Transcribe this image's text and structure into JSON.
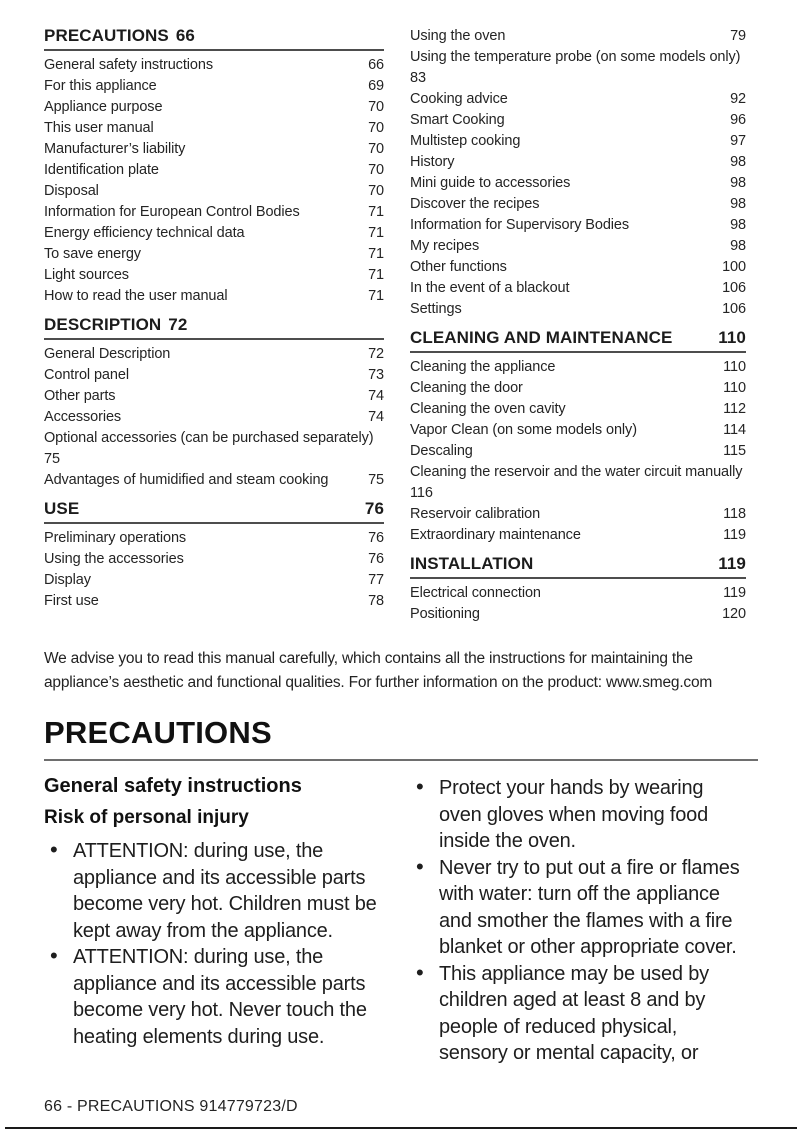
{
  "toc": {
    "left": [
      {
        "heading": {
          "label": "PRECAUTIONS",
          "page": "66"
        },
        "items": [
          {
            "label": "General safety instructions",
            "page": "66"
          },
          {
            "label": "For this appliance",
            "page": "69"
          },
          {
            "label": "Appliance purpose",
            "page": "70"
          },
          {
            "label": "This user manual",
            "page": "70"
          },
          {
            "label": "Manufacturer’s liability",
            "page": "70"
          },
          {
            "label": "Identification plate",
            "page": "70"
          },
          {
            "label": "Disposal",
            "page": "70"
          },
          {
            "label": "Information for European Control Bodies",
            "page": "71"
          },
          {
            "label": "Energy efficiency technical data",
            "page": "71"
          },
          {
            "label": "To save energy",
            "page": "71"
          },
          {
            "label": "Light sources",
            "page": "71"
          },
          {
            "label": "How to read the user manual",
            "page": "71"
          }
        ]
      },
      {
        "heading": {
          "label": "DESCRIPTION",
          "page": "72"
        },
        "items": [
          {
            "label": "General Description",
            "page": "72"
          },
          {
            "label": "Control panel",
            "page": "73"
          },
          {
            "label": "Other parts",
            "page": "74"
          },
          {
            "label": "Accessories",
            "page": "74"
          },
          {
            "label": "Optional accessories (can be purchased separately)",
            "page": "75"
          },
          {
            "label": "Advantages of humidified and steam cooking",
            "page": "75"
          }
        ]
      },
      {
        "heading": {
          "label": "USE",
          "page": "76"
        },
        "items": [
          {
            "label": "Preliminary operations",
            "page": "76"
          },
          {
            "label": "Using the accessories",
            "page": "76"
          },
          {
            "label": "Display",
            "page": "77"
          },
          {
            "label": "First use",
            "page": "78"
          }
        ]
      }
    ],
    "right": [
      {
        "items": [
          {
            "label": "Using the oven",
            "page": "79"
          },
          {
            "label": "Using the temperature probe (on some models only)",
            "page": "83"
          },
          {
            "label": "Cooking advice",
            "page": "92"
          },
          {
            "label": "Smart Cooking",
            "page": "96"
          },
          {
            "label": "Multistep cooking",
            "page": "97"
          },
          {
            "label": "History",
            "page": "98"
          },
          {
            "label": "Mini guide to accessories",
            "page": "98"
          },
          {
            "label": "Discover the recipes",
            "page": "98"
          },
          {
            "label": "Information for Supervisory Bodies",
            "page": "98"
          },
          {
            "label": "My recipes",
            "page": "98"
          },
          {
            "label": "Other functions",
            "page": "100"
          },
          {
            "label": "In the event of a blackout",
            "page": "106"
          },
          {
            "label": "Settings",
            "page": "106"
          }
        ]
      },
      {
        "heading": {
          "label": "CLEANING AND MAINTENANCE",
          "page": "110"
        },
        "items": [
          {
            "label": "Cleaning the appliance",
            "page": "110"
          },
          {
            "label": "Cleaning the door",
            "page": "110"
          },
          {
            "label": "Cleaning the oven cavity",
            "page": "112"
          },
          {
            "label": "Vapor Clean (on some models only)",
            "page": "114"
          },
          {
            "label": "Descaling",
            "page": "115"
          },
          {
            "label": "Cleaning the reservoir and the water circuit manually",
            "page": "116"
          },
          {
            "label": "Reservoir calibration",
            "page": "118"
          },
          {
            "label": "Extraordinary maintenance",
            "page": "119"
          }
        ]
      },
      {
        "heading": {
          "label": "INSTALLATION",
          "page": "119"
        },
        "items": [
          {
            "label": "Electrical connection",
            "page": "119"
          },
          {
            "label": "Positioning",
            "page": "120"
          }
        ]
      }
    ]
  },
  "intro": "We advise you to read this manual carefully, which contains all the instructions for maintaining the appliance’s aesthetic and functional qualities. For further information on the product: www.smeg.com",
  "section": {
    "title": "PRECAUTIONS",
    "subheading": "General safety instructions",
    "risk_heading": "Risk of personal injury",
    "bullets_left": [
      {
        "text": "ATTENTION: during use, the appliance and its accessible parts become very hot. Children must be kept away from the appliance."
      },
      {
        "text": "ATTENTION: during use, the appliance and its accessible parts become very hot. Never touch the heating elements during use."
      }
    ],
    "bullets_right": [
      {
        "text": "Protect your hands by wearing oven gloves when moving food inside the oven."
      },
      {
        "text": "Never try to put out a fire or flames with water: turn off the appliance and smother the flames with a fire blanket or other appropriate cover."
      },
      {
        "text": "This appliance may be used by children aged at least 8 and by people of reduced physical, sensory or mental capacity, or"
      }
    ]
  },
  "footer": {
    "text": "66  -  PRECAUTIONS 914779723/D"
  }
}
